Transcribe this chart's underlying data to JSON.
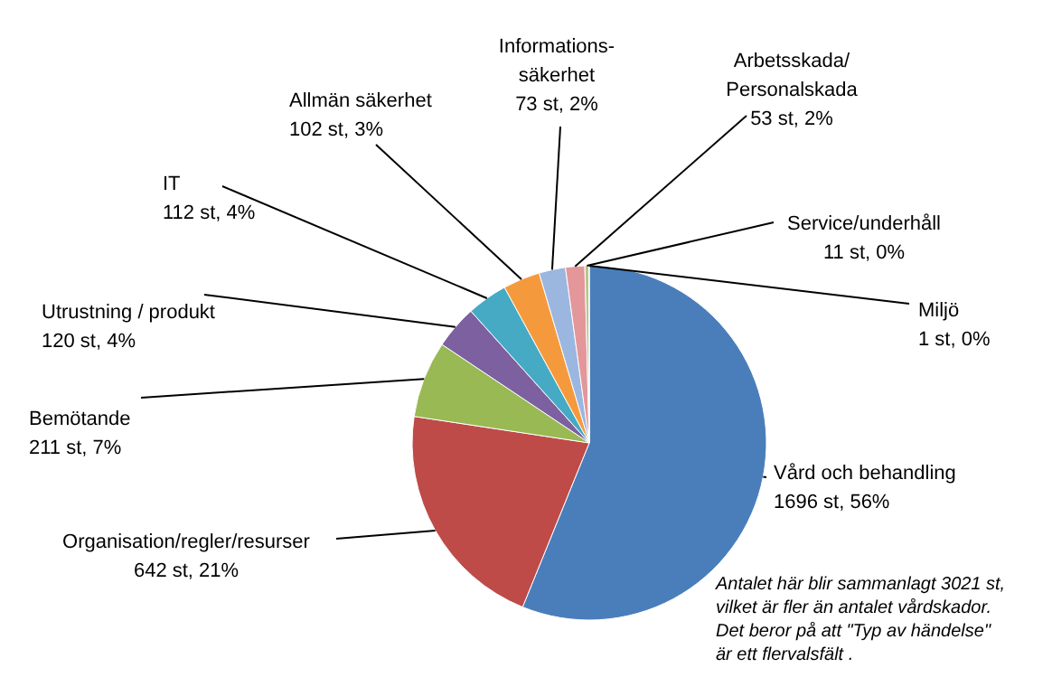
{
  "chart_data": {
    "type": "pie",
    "categories": [
      "Vård och behandling",
      "Organisation/regler/resurser",
      "Bemötande",
      "Utrustning / produkt",
      "IT",
      "Allmän säkerhet",
      "Informations-\nsäkerhet",
      "Arbetsskada/\nPersonalskada",
      "Service/underhåll",
      "Miljö"
    ],
    "values": [
      1696,
      642,
      211,
      120,
      112,
      102,
      73,
      53,
      11,
      1
    ],
    "value_labels": [
      "1696 st, 56%",
      "642 st, 21%",
      "211 st, 7%",
      "120 st, 4%",
      "112 st, 4%",
      "102 st, 3%",
      "73 st, 2%",
      "53 st, 2%",
      "11 st, 0%",
      "1 st, 0%"
    ],
    "colors": [
      "#4a7ebb",
      "#be4b48",
      "#98b954",
      "#7d60a0",
      "#46aac5",
      "#f59a3c",
      "#9bb7e0",
      "#e3979a",
      "#b5c98c",
      "#a99bbd"
    ],
    "annotations": [
      "Antalet här blir sammanlagt 3021 st,\nvilket är fler än antalet vårdskador.\nDet beror på att \"Typ av händelse\"\när ett flervalsfält ."
    ]
  }
}
